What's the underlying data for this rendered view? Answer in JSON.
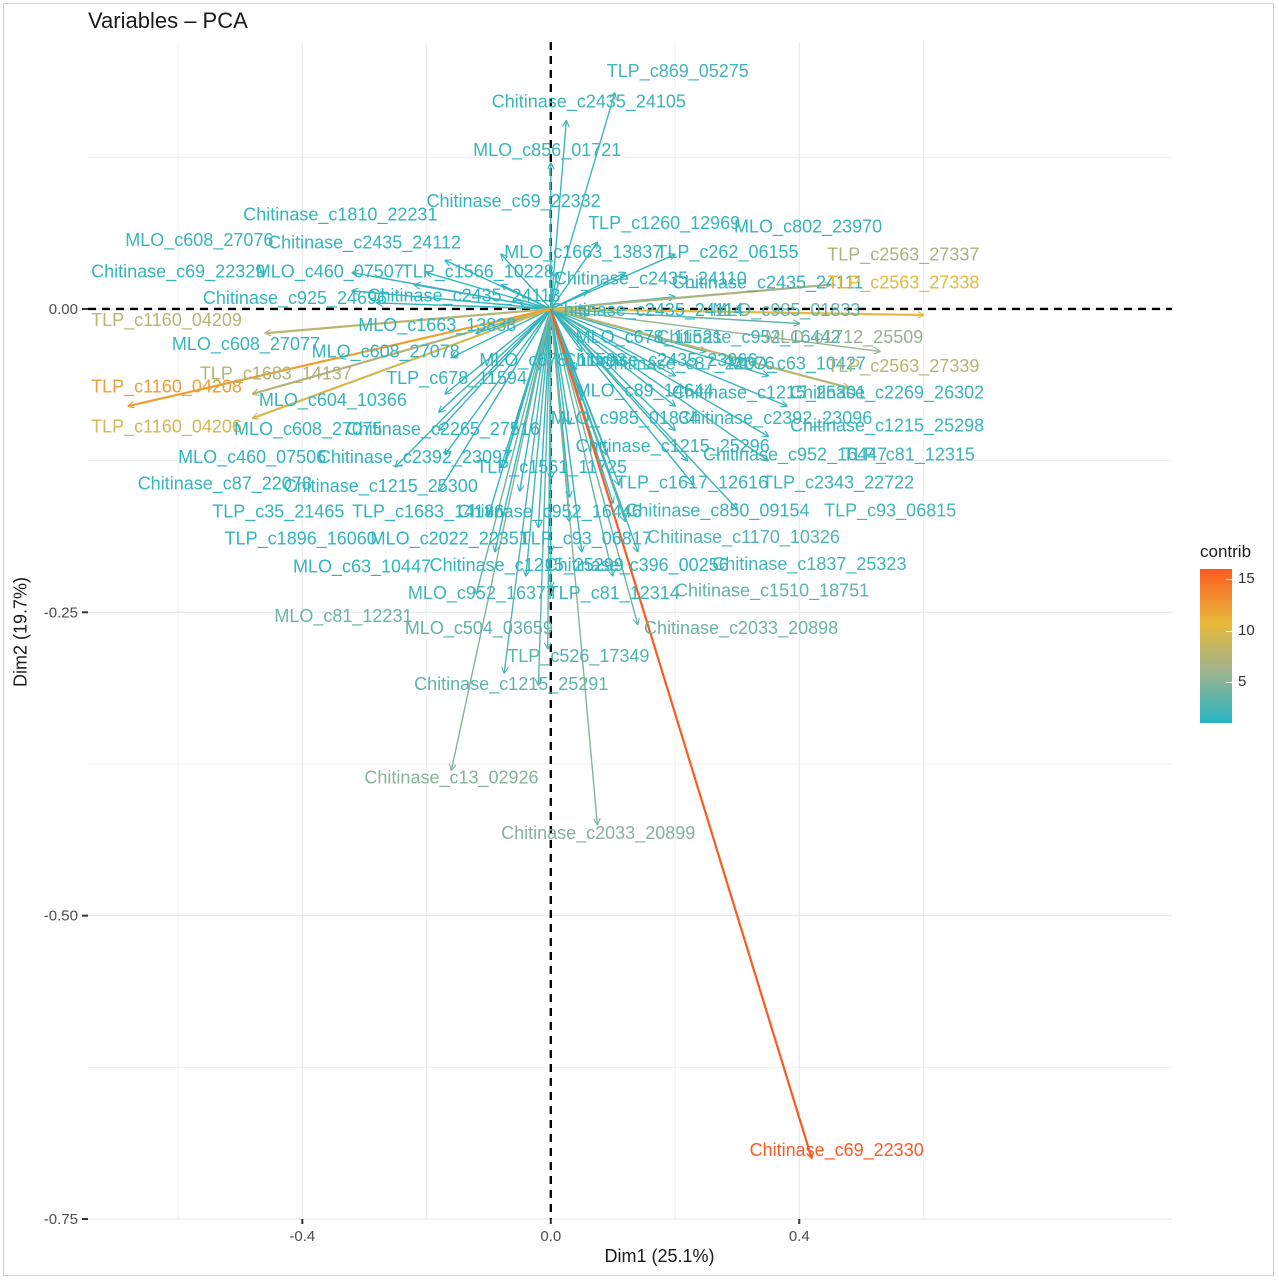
{
  "chart_data": {
    "type": "scatter",
    "title": "Variables – PCA",
    "xlabel": "Dim1 (25.1%)",
    "ylabel": "Dim2 (19.7%)",
    "xlim": [
      -0.745,
      1.0
    ],
    "ylim": [
      -0.75,
      0.22
    ],
    "x_ticks": [
      {
        "value": -0.4,
        "label": "-0.4"
      },
      {
        "value": 0.0,
        "label": "0.0"
      },
      {
        "value": 0.4,
        "label": "0.4"
      }
    ],
    "y_ticks": [
      {
        "value": 0.0,
        "label": "0.00"
      },
      {
        "value": -0.25,
        "label": "-0.25"
      },
      {
        "value": -0.5,
        "label": "-0.50"
      },
      {
        "value": -0.75,
        "label": "-0.75"
      }
    ],
    "grid": true,
    "legend": {
      "title": "contrib",
      "placement": "right",
      "ticks": [
        5,
        10,
        15
      ],
      "min": 1,
      "max": 16
    },
    "colors": {
      "low": "#26b5c4",
      "mid_low": "#a3b38a",
      "mid_high": "#e8b93a",
      "high": "#fb5a22"
    },
    "arrows": [
      {
        "name": "TLP_c869_05275",
        "x": 0.103,
        "y": 0.178,
        "contrib": 2.0
      },
      {
        "name": "Chitinase_c2435_24105",
        "x": 0.025,
        "y": 0.155,
        "contrib": 1.8
      },
      {
        "name": "MLO_c856_01721",
        "x": 0.0,
        "y": 0.12,
        "contrib": 1.6
      },
      {
        "name": "Chitinase_c69_22332",
        "x": -0.08,
        "y": 0.045,
        "contrib": 1.5
      },
      {
        "name": "Chitinase_c1810_22231",
        "x": -0.17,
        "y": 0.04,
        "contrib": 1.4
      },
      {
        "name": "MLO_c608_27076",
        "x": -0.32,
        "y": 0.03,
        "contrib": 1.6
      },
      {
        "name": "Chitinase_c2435_24112",
        "x": -0.2,
        "y": 0.03,
        "contrib": 1.5
      },
      {
        "name": "Chitinase_c69_22329",
        "x": -0.32,
        "y": 0.015,
        "contrib": 1.6
      },
      {
        "name": "MLO_c460_07507",
        "x": -0.22,
        "y": 0.02,
        "contrib": 1.5
      },
      {
        "name": "TLP_c1566_10228",
        "x": -0.08,
        "y": 0.02,
        "contrib": 1.4
      },
      {
        "name": "MLO_c1663_13837",
        "x": 0.01,
        "y": 0.03,
        "contrib": 1.3
      },
      {
        "name": "TLP_c1260_12969",
        "x": 0.075,
        "y": 0.055,
        "contrib": 1.6
      },
      {
        "name": "MLO_c802_23970",
        "x": 0.2,
        "y": 0.045,
        "contrib": 1.5
      },
      {
        "name": "TLP_c262_06155",
        "x": 0.12,
        "y": 0.03,
        "contrib": 1.4
      },
      {
        "name": "Chitinase_c2435_24110",
        "x": 0.06,
        "y": 0.015,
        "contrib": 1.3
      },
      {
        "name": "Chitinase_c2435_24111",
        "x": 0.2,
        "y": 0.01,
        "contrib": 1.4
      },
      {
        "name": "TLP_c2563_27337",
        "x": 0.45,
        "y": 0.02,
        "contrib": 6.0
      },
      {
        "name": "TLP_c2563_27338",
        "x": 0.6,
        "y": -0.005,
        "contrib": 10.5
      },
      {
        "name": "Chitinase_c925_24696",
        "x": -0.28,
        "y": 0.005,
        "contrib": 1.5
      },
      {
        "name": "Chitinase_c2435_24113",
        "x": -0.05,
        "y": 0.005,
        "contrib": 1.2
      },
      {
        "name": "Chitinase_c2435_24114",
        "x": 0.06,
        "y": -0.005,
        "contrib": 1.2
      },
      {
        "name": "MLO_c985_01833",
        "x": 0.4,
        "y": -0.012,
        "contrib": 3.0
      },
      {
        "name": "TLP_c1160_04209",
        "x": -0.46,
        "y": -0.02,
        "contrib": 7.0
      },
      {
        "name": "MLO_c1663_13838",
        "x": -0.12,
        "y": -0.02,
        "contrib": 1.3
      },
      {
        "name": "MLO_c608_27077",
        "x": -0.34,
        "y": -0.04,
        "contrib": 1.6
      },
      {
        "name": "MLO_c608_27078",
        "x": -0.16,
        "y": -0.04,
        "contrib": 1.5
      },
      {
        "name": "MLO_c678_11521",
        "x": 0.05,
        "y": -0.035,
        "contrib": 1.3
      },
      {
        "name": "Chitinase_c952_16442",
        "x": 0.25,
        "y": -0.035,
        "contrib": 2.0
      },
      {
        "name": "MLO_c1712_25509",
        "x": 0.53,
        "y": -0.035,
        "contrib": 5.0
      },
      {
        "name": "TLP_c1683_14137",
        "x": -0.48,
        "y": -0.07,
        "contrib": 6.5
      },
      {
        "name": "TLP_c1160_04208",
        "x": -0.68,
        "y": -0.08,
        "contrib": 12.0
      },
      {
        "name": "TLP_c678_11594",
        "x": -0.17,
        "y": -0.07,
        "contrib": 1.5
      },
      {
        "name": "MLO_c678_11593",
        "x": -0.02,
        "y": -0.05,
        "contrib": 1.2
      },
      {
        "name": "Chitinase_c2435_23966",
        "x": 0.04,
        "y": -0.05,
        "contrib": 1.2
      },
      {
        "name": "Chitinase_c87_22076",
        "x": 0.2,
        "y": -0.055,
        "contrib": 1.8
      },
      {
        "name": "MLO_c63_10427",
        "x": 0.35,
        "y": -0.055,
        "contrib": 1.9
      },
      {
        "name": "TLP_c2563_27339",
        "x": 0.48,
        "y": -0.065,
        "contrib": 7.0
      },
      {
        "name": "MLO_c604_10366",
        "x": -0.18,
        "y": -0.085,
        "contrib": 1.5
      },
      {
        "name": "MLO_c89_14644",
        "x": 0.05,
        "y": -0.075,
        "contrib": 1.3
      },
      {
        "name": "Chitinase_c1215_25301",
        "x": 0.2,
        "y": -0.08,
        "contrib": 1.6
      },
      {
        "name": "Chitinase_c2269_26302",
        "x": 0.38,
        "y": -0.08,
        "contrib": 1.8
      },
      {
        "name": "TLP_c1160_04206",
        "x": -0.48,
        "y": -0.09,
        "contrib": 9.0
      },
      {
        "name": "MLO_c608_27075",
        "x": -0.18,
        "y": -0.1,
        "contrib": 1.5
      },
      {
        "name": "Chitinase_c2265_27516",
        "x": -0.06,
        "y": -0.1,
        "contrib": 1.3
      },
      {
        "name": "MLO_c985_01834",
        "x": 0.03,
        "y": -0.095,
        "contrib": 1.3
      },
      {
        "name": "Chitinase_c2392_23096",
        "x": 0.2,
        "y": -0.1,
        "contrib": 1.6
      },
      {
        "name": "Chitinase_c1215_25298",
        "x": 0.35,
        "y": -0.105,
        "contrib": 1.7
      },
      {
        "name": "Chitinase_c1215_25296",
        "x": 0.09,
        "y": -0.12,
        "contrib": 1.4
      },
      {
        "name": "Chitinase_c952_16447",
        "x": 0.22,
        "y": -0.125,
        "contrib": 1.7
      },
      {
        "name": "TLP_c81_12315",
        "x": 0.35,
        "y": -0.125,
        "contrib": 1.8
      },
      {
        "name": "MLO_c460_07506",
        "x": -0.17,
        "y": -0.12,
        "contrib": 1.5
      },
      {
        "name": "Chitinase_c2392_23097",
        "x": -0.07,
        "y": -0.12,
        "contrib": 1.3
      },
      {
        "name": "TLP_c1561_11725",
        "x": 0.0,
        "y": -0.14,
        "contrib": 1.3
      },
      {
        "name": "Chitinase_c87_22078",
        "x": -0.25,
        "y": -0.13,
        "contrib": 1.6
      },
      {
        "name": "Chitinase_c1215_25300",
        "x": -0.08,
        "y": -0.13,
        "contrib": 1.4
      },
      {
        "name": "TLP_c1617_12616",
        "x": 0.11,
        "y": -0.145,
        "contrib": 1.5
      },
      {
        "name": "TLP_c2343_22722",
        "x": 0.23,
        "y": -0.145,
        "contrib": 1.6
      },
      {
        "name": "TLP_c35_21465",
        "x": -0.18,
        "y": -0.15,
        "contrib": 1.5
      },
      {
        "name": "TLP_c1683_14136",
        "x": -0.05,
        "y": -0.15,
        "contrib": 1.3
      },
      {
        "name": "Chitinase_c952_16446",
        "x": 0.03,
        "y": -0.155,
        "contrib": 1.3
      },
      {
        "name": "Chitinase_c850_09154",
        "x": 0.1,
        "y": -0.16,
        "contrib": 1.7
      },
      {
        "name": "TLP_c93_06815",
        "x": 0.3,
        "y": -0.165,
        "contrib": 2.0
      },
      {
        "name": "TLP_c1896_16060",
        "x": -0.1,
        "y": -0.17,
        "contrib": 1.4
      },
      {
        "name": "MLO_c2022_22351",
        "x": -0.02,
        "y": -0.18,
        "contrib": 1.3
      },
      {
        "name": "TLP_c93_06817",
        "x": 0.03,
        "y": -0.175,
        "contrib": 1.4
      },
      {
        "name": "Chitinase_c1170_10326",
        "x": 0.12,
        "y": -0.175,
        "contrib": 2.5
      },
      {
        "name": "MLO_c63_10447",
        "x": -0.09,
        "y": -0.2,
        "contrib": 1.4
      },
      {
        "name": "Chitinase_c1215_25299",
        "x": 0.0,
        "y": -0.2,
        "contrib": 1.3
      },
      {
        "name": "Chitinase_c396_00256",
        "x": 0.05,
        "y": -0.2,
        "contrib": 1.4
      },
      {
        "name": "Chitinase_c1837_25323",
        "x": 0.14,
        "y": -0.2,
        "contrib": 2.0
      },
      {
        "name": "MLO_c952_16377",
        "x": -0.04,
        "y": -0.22,
        "contrib": 2.0
      },
      {
        "name": "TLP_c81_12314",
        "x": 0.0,
        "y": -0.23,
        "contrib": 1.6
      },
      {
        "name": "Chitinase_c1510_18751",
        "x": 0.1,
        "y": -0.22,
        "contrib": 3.0
      },
      {
        "name": "MLO_c81_12231",
        "x": -0.12,
        "y": -0.235,
        "contrib": 3.5
      },
      {
        "name": "MLO_c504_03659",
        "x": -0.005,
        "y": -0.28,
        "contrib": 3.0
      },
      {
        "name": "Chitinase_c2033_20898",
        "x": 0.14,
        "y": -0.26,
        "contrib": 3.5
      },
      {
        "name": "TLP_c526_17349",
        "x": -0.075,
        "y": -0.3,
        "contrib": 2.5
      },
      {
        "name": "Chitinase_c1215_25291",
        "x": -0.02,
        "y": -0.31,
        "contrib": 3.0
      },
      {
        "name": "Chitinase_c13_02926",
        "x": -0.16,
        "y": -0.38,
        "contrib": 4.5
      },
      {
        "name": "Chitinase_c2033_20899",
        "x": 0.075,
        "y": -0.425,
        "contrib": 4.5
      },
      {
        "name": "Chitinase_c69_22330",
        "x": 0.42,
        "y": -0.7,
        "contrib": 16.0
      }
    ],
    "labels": [
      {
        "text": "TLP_c869_05275",
        "x": 0.09,
        "y": 0.191
      },
      {
        "text": "Chitinase_c2435_24105",
        "x": -0.095,
        "y": 0.166
      },
      {
        "text": "MLO_c856_01721",
        "x": -0.125,
        "y": 0.126
      },
      {
        "text": "Chitinase_c69_22332",
        "x": -0.2,
        "y": 0.084
      },
      {
        "text": "Chitinase_c1810_22231",
        "x": -0.495,
        "y": 0.073
      },
      {
        "text": "MLO_c608_27076",
        "x": -0.685,
        "y": 0.052
      },
      {
        "text": "Chitinase_c2435_24112",
        "x": -0.455,
        "y": 0.05
      },
      {
        "text": "Chitinase_c69_22329",
        "x": -0.74,
        "y": 0.026
      },
      {
        "text": "MLO_c460_07507",
        "x": -0.475,
        "y": 0.026
      },
      {
        "text": "TLP_c1566_10228",
        "x": -0.24,
        "y": 0.026
      },
      {
        "text": "MLO_c1663_13837",
        "x": -0.075,
        "y": 0.042
      },
      {
        "text": "TLP_c1260_12969",
        "x": 0.06,
        "y": 0.066
      },
      {
        "text": "MLO_c802_23970",
        "x": 0.295,
        "y": 0.063
      },
      {
        "text": "TLP_c262_06155",
        "x": 0.17,
        "y": 0.042
      },
      {
        "text": "Chitinase_c2435_24110",
        "x": 0.005,
        "y": 0.02
      },
      {
        "text": "Chitinase_c2435_24111",
        "x": 0.195,
        "y": 0.017
      },
      {
        "text": "TLP_c2563_27337",
        "x": 0.445,
        "y": 0.04
      },
      {
        "text": "TLP_c2563_27338",
        "x": 0.445,
        "y": 0.017
      },
      {
        "text": "Chitinase_c925_24696",
        "x": -0.56,
        "y": 0.004
      },
      {
        "text": "Chitinase_c2435_24113",
        "x": -0.295,
        "y": 0.006
      },
      {
        "text": "Chitinase_c2435_24114",
        "x": 0.0,
        "y": -0.006
      },
      {
        "text": "MLO_c985_01833",
        "x": 0.26,
        "y": -0.006
      },
      {
        "text": "TLP_c1160_04209",
        "x": -0.74,
        "y": -0.014
      },
      {
        "text": "MLO_c1663_13838",
        "x": -0.31,
        "y": -0.018
      },
      {
        "text": "MLO_c608_27077",
        "x": -0.61,
        "y": -0.034
      },
      {
        "text": "MLO_c608_27078",
        "x": -0.385,
        "y": -0.04
      },
      {
        "text": "MLO_c678_11521",
        "x": 0.04,
        "y": -0.028
      },
      {
        "text": "Chitinase_c952_16442",
        "x": 0.17,
        "y": -0.028
      },
      {
        "text": "MLO_c1712_25509",
        "x": 0.345,
        "y": -0.028
      },
      {
        "text": "TLP_c1683_14137",
        "x": -0.565,
        "y": -0.058
      },
      {
        "text": "TLP_c1160_04208",
        "x": -0.74,
        "y": -0.069
      },
      {
        "text": "TLP_c678_11594",
        "x": -0.265,
        "y": -0.062
      },
      {
        "text": "MLO_c678_11593",
        "x": -0.115,
        "y": -0.047
      },
      {
        "text": "Chitinase_c2435_23966",
        "x": 0.02,
        "y": -0.047
      },
      {
        "text": "Chitinase_c87_22076",
        "x": 0.08,
        "y": -0.05
      },
      {
        "text": "MLO_c63_10427",
        "x": 0.285,
        "y": -0.05
      },
      {
        "text": "TLP_c2563_27339",
        "x": 0.445,
        "y": -0.052
      },
      {
        "text": "MLO_c604_10366",
        "x": -0.47,
        "y": -0.08
      },
      {
        "text": "MLO_c89_14644",
        "x": 0.04,
        "y": -0.072
      },
      {
        "text": "Chitinase_c1215_25301",
        "x": 0.195,
        "y": -0.074
      },
      {
        "text": "Chitinase_c2269_26302",
        "x": 0.385,
        "y": -0.074
      },
      {
        "text": "TLP_c1160_04206",
        "x": -0.74,
        "y": -0.102
      },
      {
        "text": "MLO_c608_27075",
        "x": -0.51,
        "y": -0.104
      },
      {
        "text": "Chitinase_c2265_27516",
        "x": -0.33,
        "y": -0.104
      },
      {
        "text": "MLO_c985_01834",
        "x": 0.0,
        "y": -0.095
      },
      {
        "text": "Chitinase_c2392_23096",
        "x": 0.205,
        "y": -0.095
      },
      {
        "text": "Chitinase_c1215_25298",
        "x": 0.385,
        "y": -0.101
      },
      {
        "text": "Chitinase_c1215_25296",
        "x": 0.04,
        "y": -0.118
      },
      {
        "text": "Chitinase_c952_16447",
        "x": 0.245,
        "y": -0.125
      },
      {
        "text": "TLP_c81_12315",
        "x": 0.47,
        "y": -0.125
      },
      {
        "text": "MLO_c460_07506",
        "x": -0.6,
        "y": -0.127
      },
      {
        "text": "Chitinase_c2392_23097",
        "x": -0.375,
        "y": -0.127
      },
      {
        "text": "TLP_c1561_11725",
        "x": -0.12,
        "y": -0.135
      },
      {
        "text": "Chitinase_c87_22078",
        "x": -0.665,
        "y": -0.149
      },
      {
        "text": "Chitinase_c1215_25300",
        "x": -0.43,
        "y": -0.151
      },
      {
        "text": "TLP_c1617_12616",
        "x": 0.105,
        "y": -0.148
      },
      {
        "text": "TLP_c2343_22722",
        "x": 0.34,
        "y": -0.148
      },
      {
        "text": "TLP_c35_21465",
        "x": -0.545,
        "y": -0.172
      },
      {
        "text": "TLP_c1683_14136",
        "x": -0.32,
        "y": -0.172
      },
      {
        "text": "Chitinase_c952_16446",
        "x": -0.15,
        "y": -0.172
      },
      {
        "text": "Chitinase_c850_09154",
        "x": 0.12,
        "y": -0.171
      },
      {
        "text": "TLP_c93_06815",
        "x": 0.44,
        "y": -0.171
      },
      {
        "text": "TLP_c1896_16060",
        "x": -0.525,
        "y": -0.194
      },
      {
        "text": "MLO_c2022_22351",
        "x": -0.29,
        "y": -0.194
      },
      {
        "text": "TLP_c93_06817",
        "x": -0.05,
        "y": -0.194
      },
      {
        "text": "Chitinase_c1170_10326",
        "x": 0.155,
        "y": -0.193
      },
      {
        "text": "MLO_c63_10447",
        "x": -0.415,
        "y": -0.217
      },
      {
        "text": "Chitinase_c1215_25299",
        "x": -0.195,
        "y": -0.216
      },
      {
        "text": "Chitinase_c396_00256",
        "x": -0.01,
        "y": -0.216
      },
      {
        "text": "Chitinase_c1837_25323",
        "x": 0.26,
        "y": -0.215
      },
      {
        "text": "MLO_c952_16377",
        "x": -0.23,
        "y": -0.239
      },
      {
        "text": "TLP_c81_12314",
        "x": -0.005,
        "y": -0.239
      },
      {
        "text": "Chitinase_c1510_18751",
        "x": 0.2,
        "y": -0.237
      },
      {
        "text": "MLO_c81_12231",
        "x": -0.445,
        "y": -0.258
      },
      {
        "text": "MLO_c504_03659",
        "x": -0.235,
        "y": -0.268
      },
      {
        "text": "Chitinase_c2033_20898",
        "x": 0.15,
        "y": -0.268
      },
      {
        "text": "TLP_c526_17349",
        "x": -0.07,
        "y": -0.291
      },
      {
        "text": "Chitinase_c1215_25291",
        "x": -0.22,
        "y": -0.314
      },
      {
        "text": "Chitinase_c13_02926",
        "x": -0.3,
        "y": -0.391
      },
      {
        "text": "Chitinase_c2033_20899",
        "x": -0.08,
        "y": -0.437
      },
      {
        "text": "Chitinase_c69_22330",
        "x": 0.32,
        "y": -0.698
      }
    ]
  }
}
